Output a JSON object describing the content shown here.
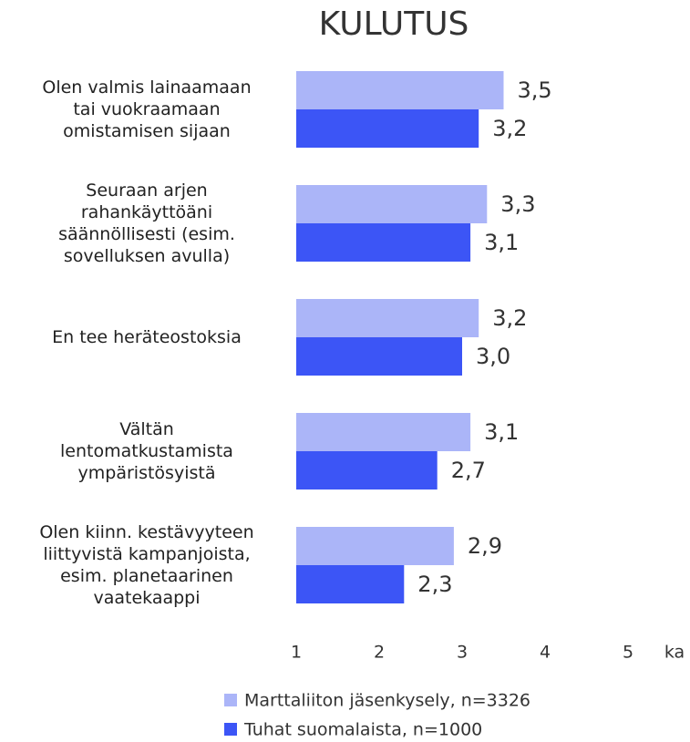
{
  "chart_data": {
    "type": "bar",
    "orientation": "horizontal",
    "title": "KULUTUS",
    "categories": [
      "Olen valmis lainaamaan\ntai vuokraamaan\nomistamisen sijaan",
      "Seuraan arjen\nrahankäyttöäni\nsäännöllisesti (esim.\nsovelluksen avulla)",
      "En tee heräteostoksia",
      "Vältän\nlentomatkustamista\nympäristösyistä",
      "Olen kiinn. kestävyyteen\nliittyvistä kampanjoista,\nesim. planetaarinen\nvaatekaappi"
    ],
    "series": [
      {
        "name": "Marttaliiton jäsenkysely, n=3326",
        "color": "#abb5f8",
        "values": [
          3.5,
          3.3,
          3.2,
          3.1,
          2.9
        ],
        "value_labels": [
          "3,5",
          "3,3",
          "3,2",
          "3,1",
          "2,9"
        ]
      },
      {
        "name": "Tuhat suomalaista, n=1000",
        "color": "#3c55f6",
        "values": [
          3.2,
          3.1,
          3.0,
          2.7,
          2.3
        ],
        "value_labels": [
          "3,2",
          "3,1",
          "3,0",
          "2,7",
          "2,3"
        ]
      }
    ],
    "xlabel": "ka",
    "xlim": [
      1,
      5
    ],
    "xticks": [
      1,
      2,
      3,
      4,
      5
    ],
    "grid": false
  }
}
